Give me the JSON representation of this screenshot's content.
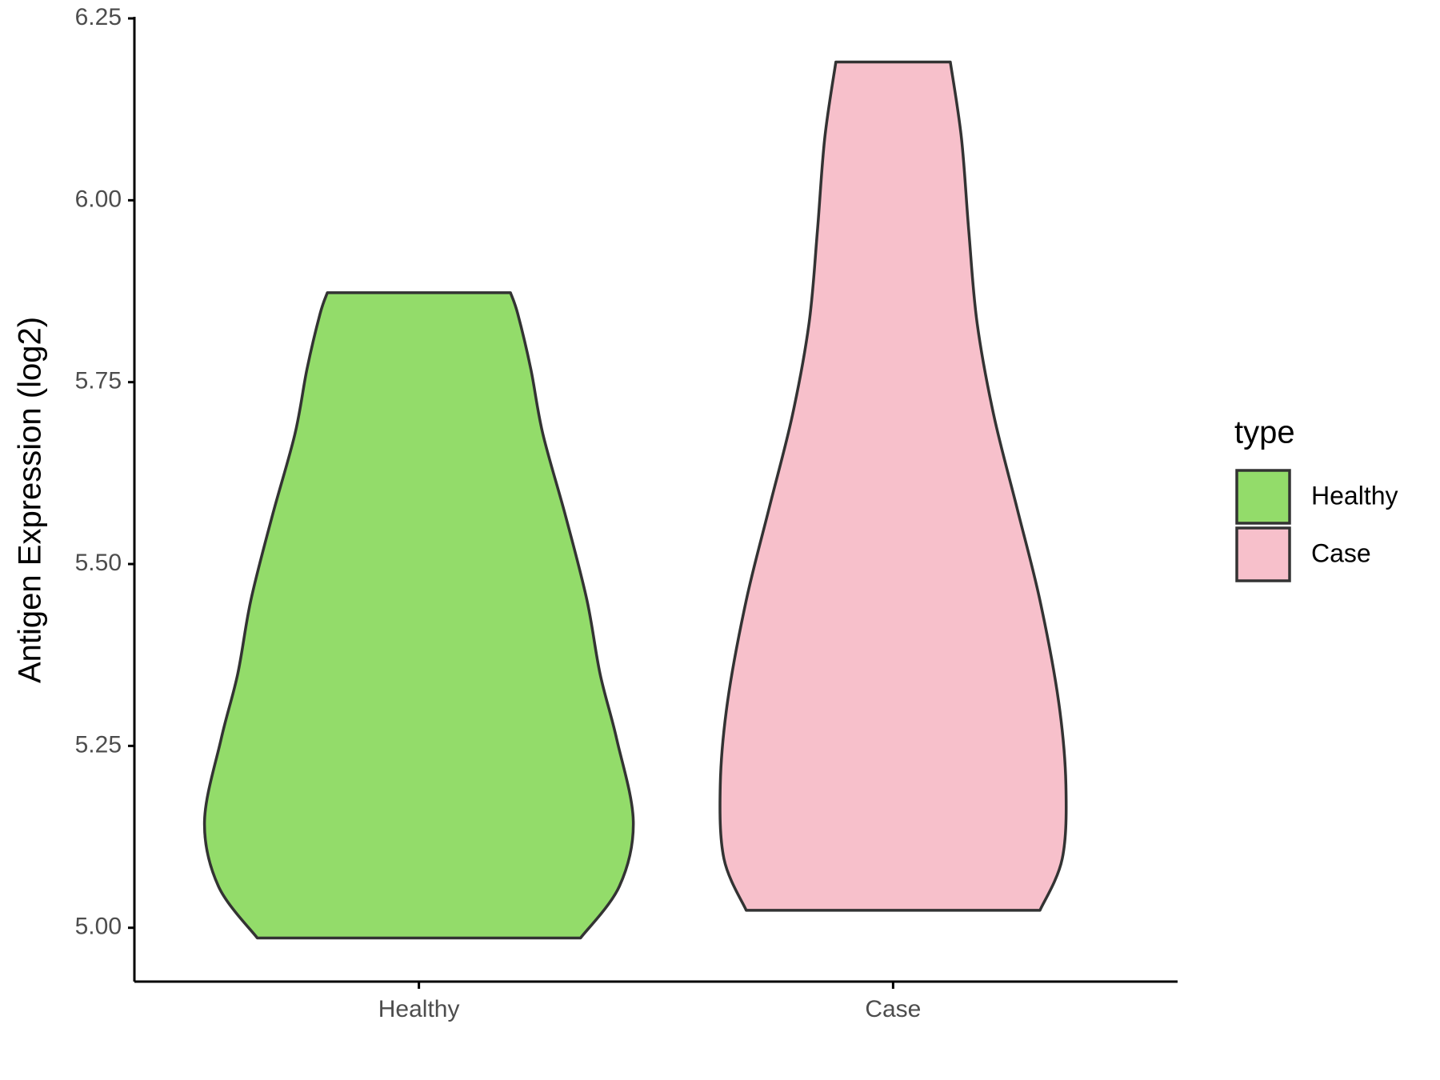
{
  "chart_data": {
    "type": "violin",
    "y_label": "Antigen Expression (log2)",
    "legend_title": "type",
    "categories": [
      "Healthy",
      "Case"
    ],
    "series": [
      {
        "name": "Healthy",
        "color": "#93dc6a",
        "y": [
          4.986,
          5.057,
          5.146,
          5.26,
          5.349,
          5.45,
          5.565,
          5.679,
          5.768,
          5.844,
          5.873
        ],
        "widths": [
          0.754,
          0.935,
          1,
          0.922,
          0.845,
          0.784,
          0.685,
          0.578,
          0.522,
          0.461,
          0.427
        ]
      },
      {
        "name": "Case",
        "color": "#f7c0cb",
        "y": [
          5.024,
          5.095,
          5.197,
          5.311,
          5.45,
          5.577,
          5.704,
          5.831,
          5.958,
          6.085,
          6.19
        ],
        "widths": [
          0.685,
          0.789,
          0.806,
          0.772,
          0.685,
          0.578,
          0.47,
          0.392,
          0.353,
          0.319,
          0.267
        ]
      }
    ],
    "ylim": [
      4.926,
      6.25
    ],
    "yticks": [
      {
        "value": 5,
        "label": "5.00"
      },
      {
        "value": 5.25,
        "label": "5.25"
      },
      {
        "value": 5.5,
        "label": "5.50"
      },
      {
        "value": 5.75,
        "label": "5.75"
      },
      {
        "value": 6,
        "label": "6.00"
      },
      {
        "value": 6.25,
        "label": "6.25"
      }
    ]
  }
}
